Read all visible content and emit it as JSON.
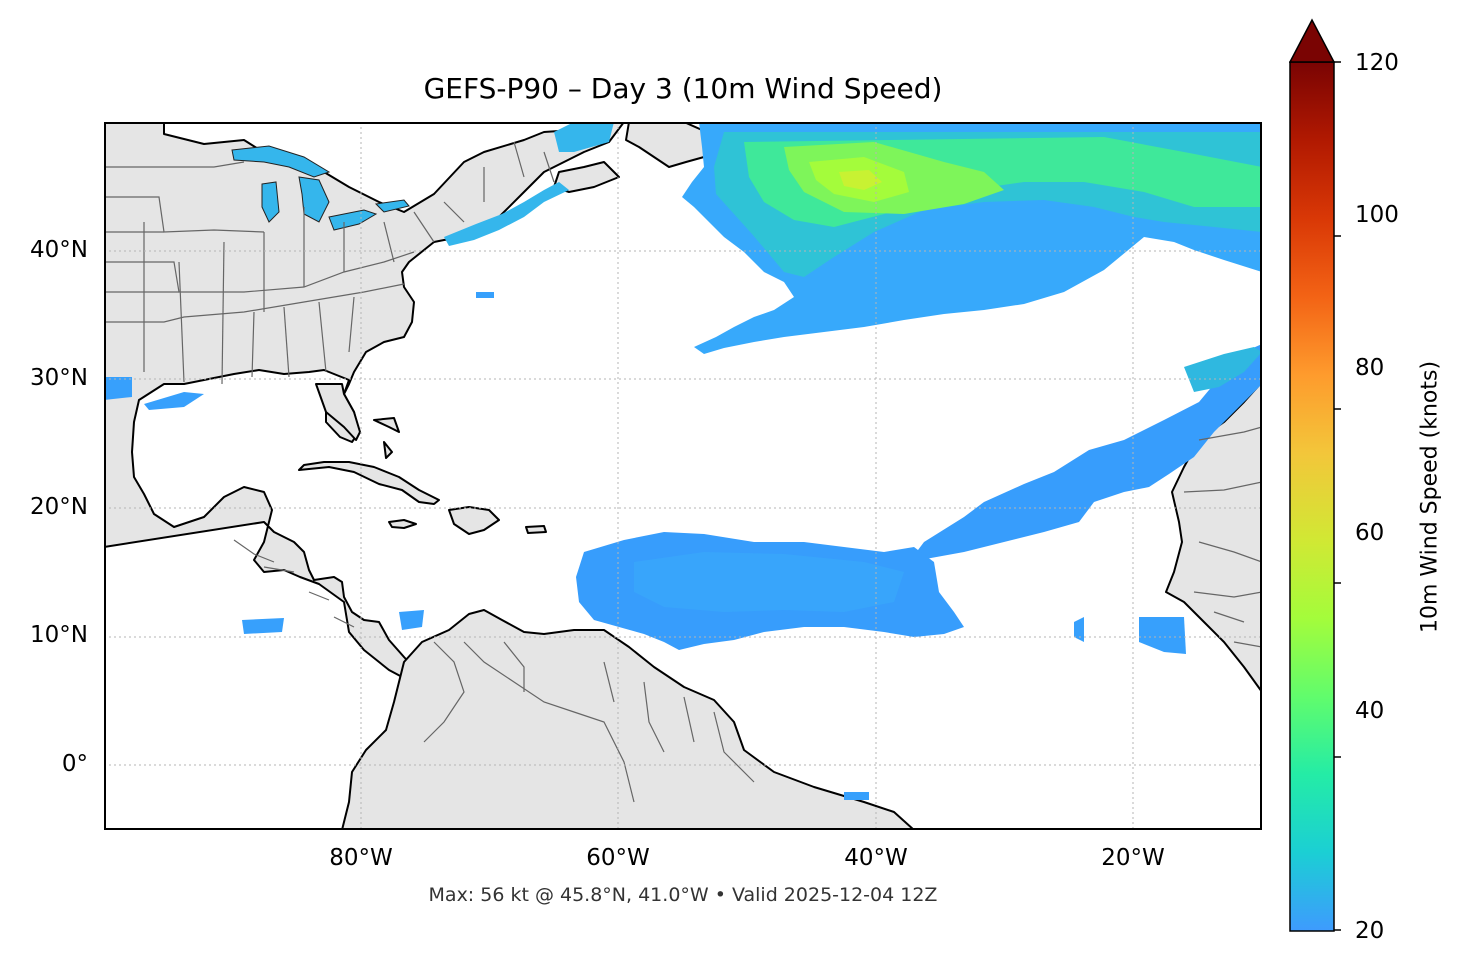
{
  "title": "GEFS-P90 – Day 3 (10m Wind Speed)",
  "subtitle": "Max: 56 kt @ 45.8°N, 41.0°W • Valid 2025-12-04 12Z",
  "map": {
    "extent_lon": [
      -100,
      -10
    ],
    "extent_lat": [
      -5,
      50
    ],
    "lat_labels": [
      "40°N",
      "30°N",
      "20°N",
      "10°N",
      "0°"
    ],
    "lon_labels": [
      "80°W",
      "60°W",
      "40°W",
      "20°W"
    ],
    "gridlines": true,
    "land_color": "#e5e5e5",
    "coast_color": "#000000",
    "border_color": "#666666"
  },
  "colorbar": {
    "label": "10m Wind Speed (knots)",
    "ticks": [
      "20",
      "40",
      "60",
      "80",
      "100",
      "120"
    ],
    "range": [
      20,
      120
    ],
    "extend": "max",
    "colormap": "turbo",
    "colors": [
      "#3e9bfe",
      "#1bcfd4",
      "#24eca6",
      "#61fc6c",
      "#a4fc3b",
      "#d1e834",
      "#f3c63a",
      "#fe9b2d",
      "#f36315",
      "#d93806",
      "#b11901",
      "#7a0403"
    ]
  }
}
